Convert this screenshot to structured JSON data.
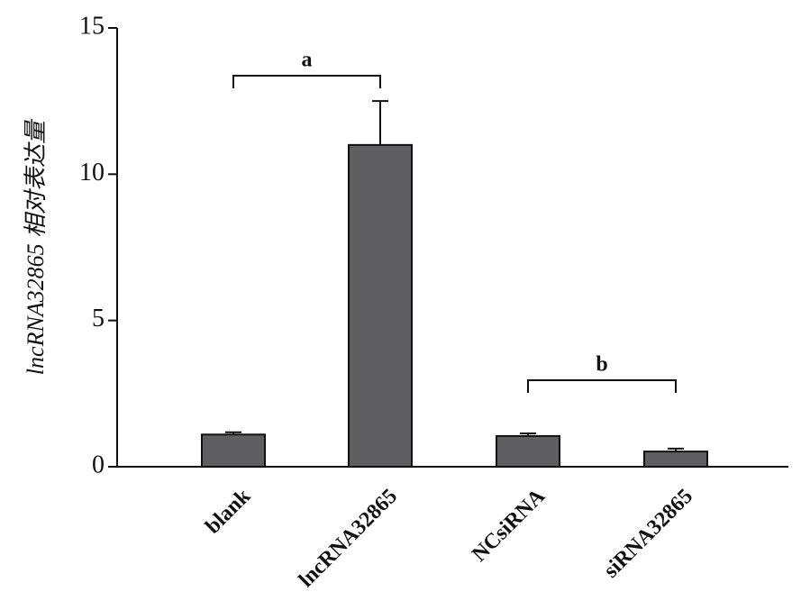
{
  "chart_data": {
    "type": "bar",
    "y_label": "lncRNA32865 相对表达量",
    "categories": [
      "blank",
      "lncRNA32865",
      "NCsiRNA",
      "siRNA32865"
    ],
    "values": [
      1.1,
      11.0,
      1.05,
      0.52
    ],
    "errors": [
      0.08,
      1.5,
      0.09,
      0.1
    ],
    "color": "#5f5e60",
    "ylim": [
      0,
      15
    ],
    "yticks": [
      0,
      5,
      10,
      15
    ],
    "annotations": [
      "a",
      "b"
    ]
  }
}
